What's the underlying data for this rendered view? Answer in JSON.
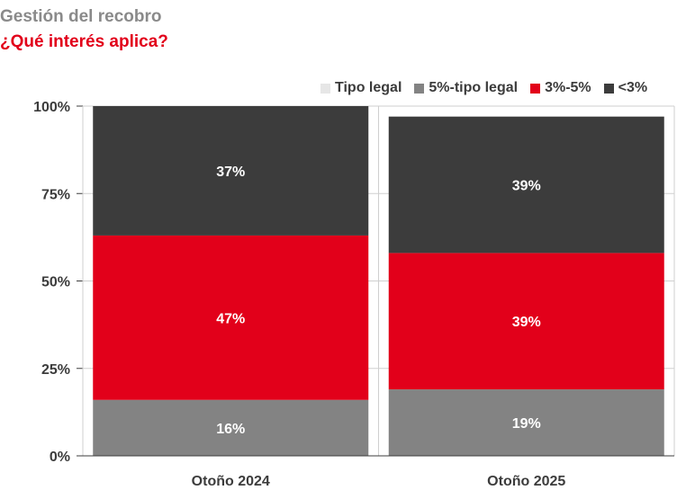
{
  "chart_data": {
    "type": "bar",
    "stacked": true,
    "title": "Gestión del recobro",
    "subtitle": "¿Qué interés aplica?",
    "categories": [
      "Otoño 2024",
      "Otoño 2025"
    ],
    "ylim": [
      0,
      100
    ],
    "yticks": [
      "0%",
      "25%",
      "50%",
      "75%",
      "100%"
    ],
    "grid": true,
    "legend_position": "top-right",
    "series": [
      {
        "name": "Tipo legal",
        "color": "#e6e6e6",
        "values": [
          0,
          0
        ],
        "labels": [
          "",
          ""
        ]
      },
      {
        "name": "5%-tipo legal",
        "color": "#838383",
        "values": [
          16,
          19
        ],
        "labels": [
          "16%",
          "19%"
        ]
      },
      {
        "name": "3%-5%",
        "color": "#e2001a",
        "values": [
          47,
          39
        ],
        "labels": [
          "47%",
          "39%"
        ]
      },
      {
        "name": "<3%",
        "color": "#3c3c3c",
        "values": [
          37,
          39
        ],
        "labels": [
          "37%",
          "39%"
        ]
      }
    ],
    "legend_order": [
      0,
      1,
      2,
      3
    ],
    "title_color": "#8a8a8a",
    "subtitle_color": "#e2001a"
  }
}
